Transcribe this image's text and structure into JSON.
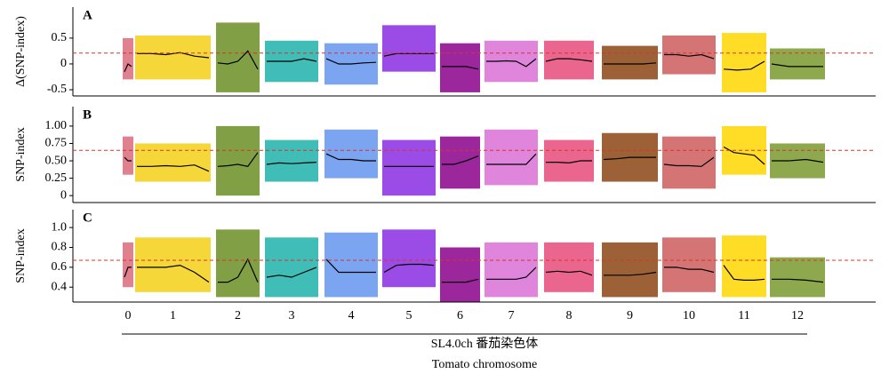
{
  "x_axis": {
    "categories": [
      "0",
      "1",
      "2",
      "3",
      "4",
      "5",
      "6",
      "7",
      "8",
      "9",
      "10",
      "11",
      "12"
    ],
    "label": "SL4.0ch 番茄染色体",
    "sublabel": "Tomato chromosome"
  },
  "chart_data": [
    {
      "type": "band",
      "panel": "A",
      "ylabel": "Δ(SNP-index)",
      "ylim": [
        -0.62,
        1.1
      ],
      "yticks": [
        0.5,
        0,
        -0.5
      ],
      "threshold": 0.21,
      "series": [
        {
          "color": "#d96b7b",
          "low": -0.3,
          "high": 0.5,
          "values": [
            -0.15,
            0.0,
            -0.05
          ]
        },
        {
          "color": "#f5d016",
          "low": -0.3,
          "high": 0.55,
          "values": [
            0.2,
            0.2,
            0.18,
            0.22,
            0.15,
            0.12
          ]
        },
        {
          "color": "#6b8e23",
          "low": -0.55,
          "high": 0.8,
          "values": [
            0.02,
            0.0,
            0.05,
            0.25,
            -0.1
          ]
        },
        {
          "color": "#20b2aa",
          "low": -0.35,
          "high": 0.45,
          "values": [
            0.05,
            0.05,
            0.05,
            0.1,
            0.05
          ]
        },
        {
          "color": "#6495ed",
          "low": -0.4,
          "high": 0.4,
          "values": [
            0.1,
            0.0,
            0.0,
            0.02,
            0.03
          ]
        },
        {
          "color": "#8a2be2",
          "low": -0.15,
          "high": 0.75,
          "values": [
            0.15,
            0.2,
            0.2,
            0.2,
            0.2
          ]
        },
        {
          "color": "#8b008b",
          "low": -0.55,
          "high": 0.4,
          "values": [
            -0.05,
            -0.05,
            -0.05,
            -0.1
          ]
        },
        {
          "color": "#da70d6",
          "low": -0.35,
          "high": 0.45,
          "values": [
            0.05,
            0.05,
            0.06,
            0.05,
            -0.05,
            0.1
          ]
        },
        {
          "color": "#e64b7a",
          "low": -0.3,
          "high": 0.45,
          "values": [
            0.05,
            0.1,
            0.1,
            0.08,
            0.05
          ]
        },
        {
          "color": "#8b4513",
          "low": -0.3,
          "high": 0.35,
          "values": [
            0.0,
            0.0,
            0.0,
            0.0,
            0.02
          ]
        },
        {
          "color": "#cd5c5c",
          "low": -0.2,
          "high": 0.55,
          "values": [
            0.18,
            0.18,
            0.15,
            0.18,
            0.1
          ]
        },
        {
          "color": "#ffd700",
          "low": -0.55,
          "high": 0.6,
          "values": [
            -0.1,
            -0.12,
            -0.1,
            0.05
          ]
        },
        {
          "color": "#7a9a2e",
          "low": -0.3,
          "high": 0.3,
          "values": [
            0.0,
            -0.05,
            -0.05,
            -0.05
          ]
        }
      ]
    },
    {
      "type": "band",
      "panel": "B",
      "ylabel": "SNP-index",
      "ylim": [
        -0.1,
        1.28
      ],
      "yticks": [
        {
          "value": 1,
          "label": "1.00"
        },
        0.75,
        {
          "value": 0.5,
          "label": "0.50"
        },
        0.25,
        0
      ],
      "threshold": 0.65,
      "series": [
        {
          "color": "#d96b7b",
          "low": 0.3,
          "high": 0.85,
          "values": [
            0.55,
            0.5,
            0.5
          ]
        },
        {
          "color": "#f5d016",
          "low": 0.2,
          "high": 0.75,
          "values": [
            0.42,
            0.42,
            0.43,
            0.42,
            0.44,
            0.35
          ]
        },
        {
          "color": "#6b8e23",
          "low": 0.0,
          "high": 1.0,
          "values": [
            0.42,
            0.43,
            0.45,
            0.42,
            0.62
          ]
        },
        {
          "color": "#20b2aa",
          "low": 0.2,
          "high": 0.8,
          "values": [
            0.45,
            0.47,
            0.46,
            0.47,
            0.48
          ]
        },
        {
          "color": "#6495ed",
          "low": 0.25,
          "high": 0.95,
          "values": [
            0.6,
            0.52,
            0.52,
            0.5,
            0.5
          ]
        },
        {
          "color": "#8a2be2",
          "low": 0.0,
          "high": 0.8,
          "values": [
            0.42,
            0.42,
            0.42,
            0.42,
            0.42
          ]
        },
        {
          "color": "#8b008b",
          "low": 0.1,
          "high": 0.85,
          "values": [
            0.45,
            0.45,
            0.5,
            0.57
          ]
        },
        {
          "color": "#da70d6",
          "low": 0.15,
          "high": 0.95,
          "values": [
            0.45,
            0.45,
            0.45,
            0.45,
            0.45,
            0.6
          ]
        },
        {
          "color": "#e64b7a",
          "low": 0.2,
          "high": 0.8,
          "values": [
            0.48,
            0.48,
            0.47,
            0.5,
            0.5
          ]
        },
        {
          "color": "#8b4513",
          "low": 0.2,
          "high": 0.9,
          "values": [
            0.52,
            0.53,
            0.55,
            0.55,
            0.55
          ]
        },
        {
          "color": "#cd5c5c",
          "low": 0.1,
          "high": 0.85,
          "values": [
            0.45,
            0.43,
            0.43,
            0.42,
            0.55
          ]
        },
        {
          "color": "#ffd700",
          "low": 0.3,
          "high": 1.0,
          "values": [
            0.7,
            0.62,
            0.6,
            0.58,
            0.45
          ]
        },
        {
          "color": "#7a9a2e",
          "low": 0.25,
          "high": 0.75,
          "values": [
            0.5,
            0.5,
            0.52,
            0.48
          ]
        }
      ]
    },
    {
      "type": "band",
      "panel": "C",
      "ylabel": "SNP-index",
      "ylim": [
        0.25,
        1.18
      ],
      "yticks": [
        {
          "value": 1,
          "label": "1.0"
        },
        0.8,
        0.6,
        0.4
      ],
      "threshold": 0.67,
      "series": [
        {
          "color": "#d96b7b",
          "low": 0.4,
          "high": 0.85,
          "values": [
            0.5,
            0.6,
            0.6
          ]
        },
        {
          "color": "#f5d016",
          "low": 0.35,
          "high": 0.9,
          "values": [
            0.6,
            0.6,
            0.6,
            0.62,
            0.55,
            0.45
          ]
        },
        {
          "color": "#6b8e23",
          "low": 0.3,
          "high": 0.98,
          "values": [
            0.45,
            0.45,
            0.5,
            0.68,
            0.45
          ]
        },
        {
          "color": "#20b2aa",
          "low": 0.3,
          "high": 0.9,
          "values": [
            0.5,
            0.52,
            0.5,
            0.55,
            0.6
          ]
        },
        {
          "color": "#6495ed",
          "low": 0.3,
          "high": 0.95,
          "values": [
            0.68,
            0.55,
            0.55,
            0.55,
            0.55
          ]
        },
        {
          "color": "#8a2be2",
          "low": 0.4,
          "high": 0.98,
          "values": [
            0.55,
            0.62,
            0.63,
            0.63,
            0.62
          ]
        },
        {
          "color": "#8b008b",
          "low": 0.25,
          "high": 0.8,
          "values": [
            0.45,
            0.45,
            0.45,
            0.48
          ]
        },
        {
          "color": "#da70d6",
          "low": 0.3,
          "high": 0.85,
          "values": [
            0.48,
            0.48,
            0.48,
            0.48,
            0.5,
            0.6
          ]
        },
        {
          "color": "#e64b7a",
          "low": 0.35,
          "high": 0.85,
          "values": [
            0.55,
            0.56,
            0.55,
            0.56,
            0.52
          ]
        },
        {
          "color": "#8b4513",
          "low": 0.3,
          "high": 0.85,
          "values": [
            0.52,
            0.52,
            0.52,
            0.53,
            0.55
          ]
        },
        {
          "color": "#cd5c5c",
          "low": 0.35,
          "high": 0.9,
          "values": [
            0.6,
            0.6,
            0.58,
            0.58,
            0.55
          ]
        },
        {
          "color": "#ffd700",
          "low": 0.3,
          "high": 0.92,
          "values": [
            0.62,
            0.48,
            0.47,
            0.47,
            0.48
          ]
        },
        {
          "color": "#7a9a2e",
          "low": 0.3,
          "high": 0.7,
          "values": [
            0.48,
            0.48,
            0.47,
            0.45
          ]
        }
      ]
    }
  ]
}
